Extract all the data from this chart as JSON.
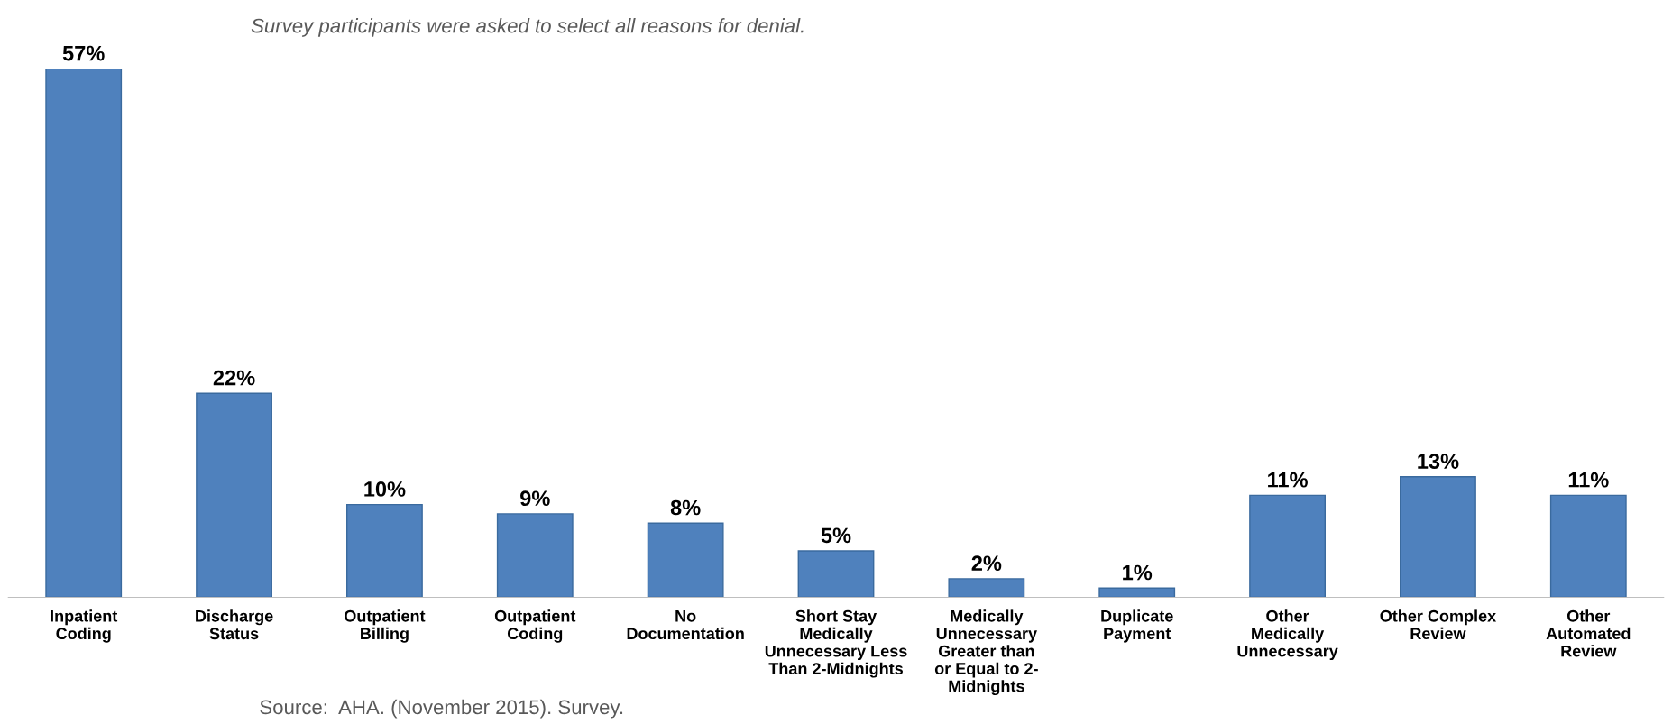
{
  "chart_data": {
    "type": "bar",
    "subtitle": "Survey participants were asked to select all reasons for denial.",
    "categories": [
      "Inpatient\nCoding",
      "Discharge\nStatus",
      "Outpatient\nBilling",
      "Outpatient\nCoding",
      "No\nDocumentation",
      "Short Stay\nMedically\nUnnecessary Less\nThan 2-Midnights",
      "Medically\nUnnecessary\nGreater than\nor Equal to 2-\nMidnights",
      "Duplicate\nPayment",
      "Other\nMedically\nUnnecessary",
      "Other Complex\nReview",
      "Other\nAutomated\nReview"
    ],
    "values": [
      57,
      22,
      10,
      9,
      8,
      5,
      2,
      1,
      11,
      13,
      11
    ],
    "value_labels": [
      "57%",
      "22%",
      "10%",
      "9%",
      "8%",
      "5%",
      "2%",
      "1%",
      "11%",
      "13%",
      "11%"
    ],
    "color": "#4f81bd",
    "annotations": [
      "Source:  AHA. (November 2015). Survey."
    ],
    "grid": false,
    "legend": false
  }
}
